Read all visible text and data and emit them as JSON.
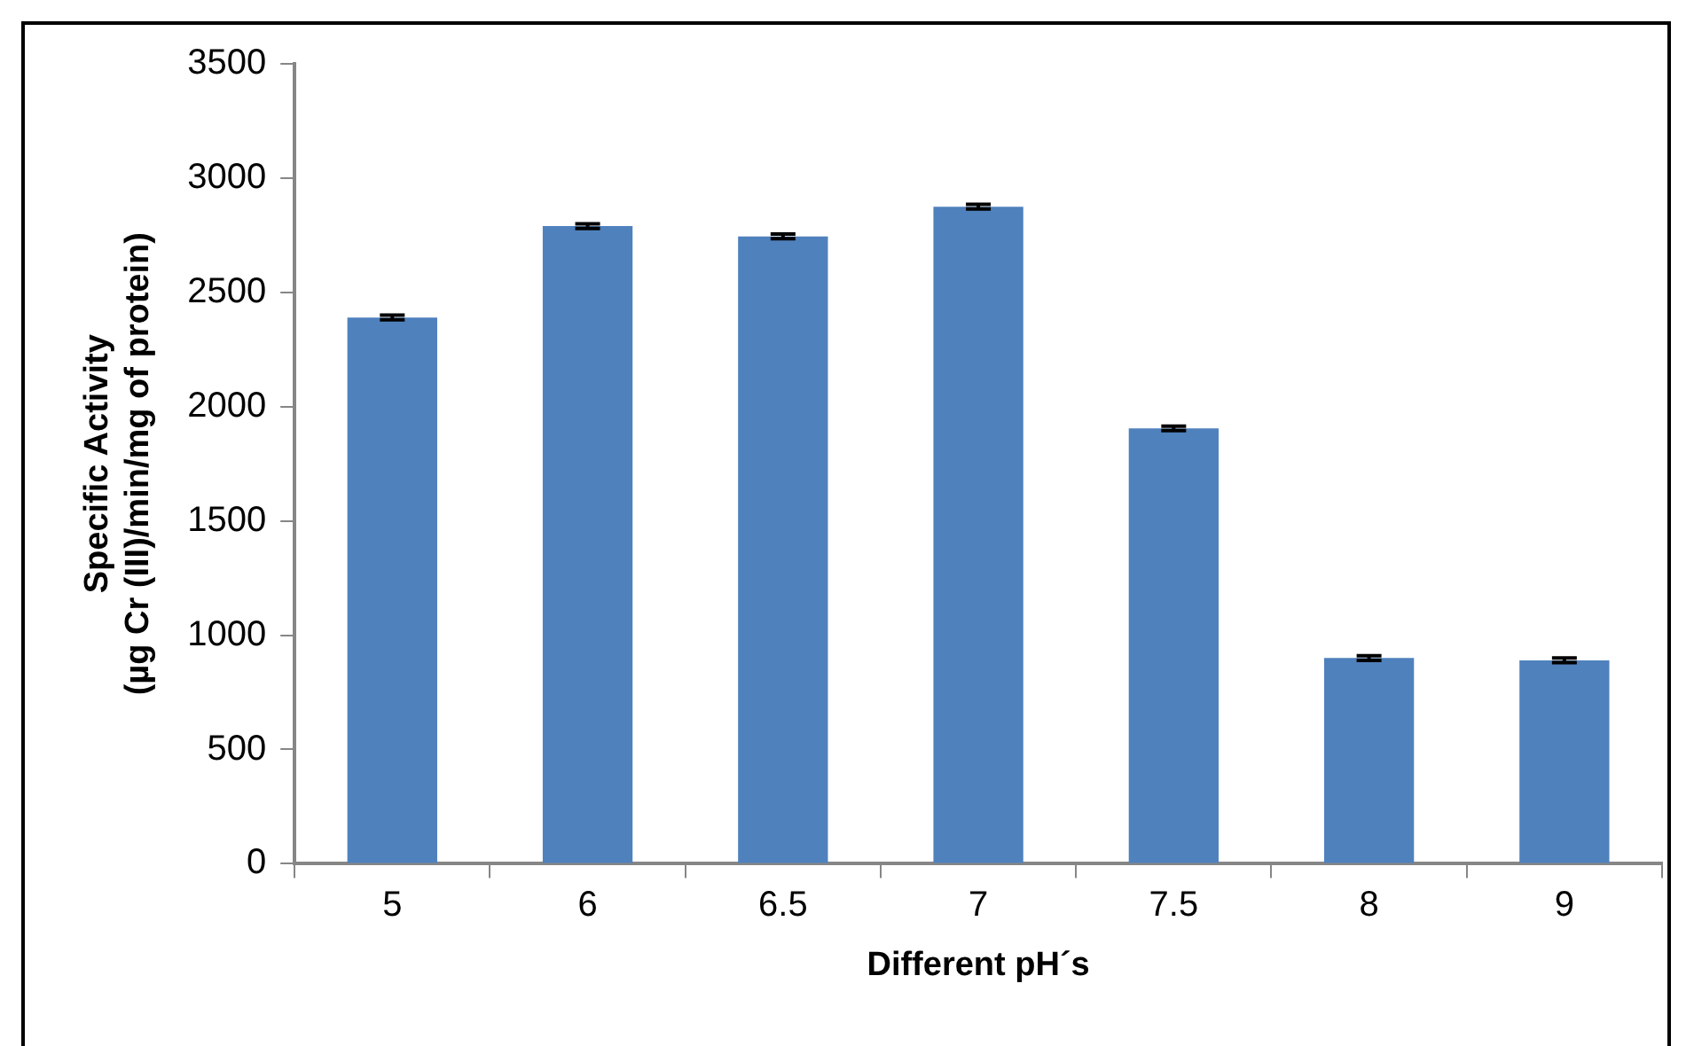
{
  "chart_data": {
    "type": "bar",
    "xlabel": "Different pH´s",
    "ylabel": "Specific Activity\n(µg Cr (III)/min/mg of protein)",
    "categories": [
      "5",
      "6",
      "6.5",
      "7",
      "7.5",
      "8",
      "9"
    ],
    "series": [
      {
        "color": "#4f81bd",
        "values": [
          2390,
          2790,
          2745,
          2875,
          1905,
          900,
          890
        ],
        "errors": [
          10,
          10,
          10,
          10,
          10,
          10,
          10
        ]
      }
    ],
    "ylim": [
      0,
      3500
    ],
    "yticks": [
      0,
      500,
      1000,
      1500,
      2000,
      2500,
      3000,
      3500
    ],
    "grid": false,
    "legend": false
  }
}
